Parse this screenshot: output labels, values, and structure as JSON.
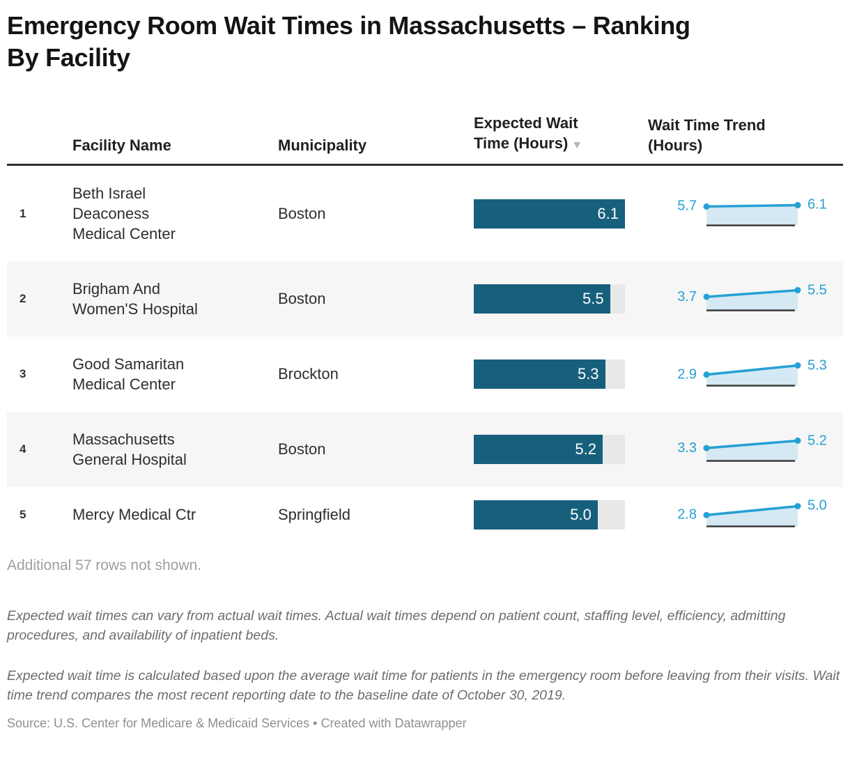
{
  "title": "Emergency Room Wait Times in Massachusetts – Ranking\nBy Facility",
  "colors": {
    "bar_fill": "#16607c",
    "bar_track": "#e8e8e8",
    "trend_line": "#26a0d4",
    "trend_area": "#d4e9f4",
    "trend_baseline": "#3a3a3a",
    "zebra_row": "#f6f6f6",
    "header_border": "#2e2e2e",
    "title_color": "#141414",
    "body_text": "#2e2e2e",
    "muted_text": "#9e9e9e",
    "note_text": "#6d6d6d",
    "source_text": "#8f8f8f",
    "sort_arrow": "#b5b5b5"
  },
  "table": {
    "headers": {
      "facility": "Facility Name",
      "municipality": "Municipality",
      "wait": "Expected Wait\nTime (Hours)",
      "trend": "Wait Time Trend\n(Hours)"
    },
    "sort_icon": "▼",
    "rows": [
      {
        "rank": "1",
        "facility": "Beth Israel Deaconess Medical Center",
        "municipality": "Boston",
        "wait": "6.1",
        "trend_start": "5.7",
        "trend_end": "6.1"
      },
      {
        "rank": "2",
        "facility": "Brigham And Women'S Hospital",
        "municipality": "Boston",
        "wait": "5.5",
        "trend_start": "3.7",
        "trend_end": "5.5"
      },
      {
        "rank": "3",
        "facility": "Good Samaritan Medical Center",
        "municipality": "Brockton",
        "wait": "5.3",
        "trend_start": "2.9",
        "trend_end": "5.3"
      },
      {
        "rank": "4",
        "facility": "Massachusetts General Hospital",
        "municipality": "Boston",
        "wait": "5.2",
        "trend_start": "3.3",
        "trend_end": "5.2"
      },
      {
        "rank": "5",
        "facility": "Mercy Medical Ctr",
        "municipality": "Springfield",
        "wait": "5.0",
        "trend_start": "2.8",
        "trend_end": "5.0"
      }
    ],
    "additional_rows_note": "Additional 57 rows not shown."
  },
  "notes": [
    "Expected wait times can vary from actual wait times. Actual wait times depend on patient count, staffing level, efficiency, admitting procedures, and availability of inpatient beds.",
    "Expected wait time is calculated based upon the average wait time for patients in the emergency room before leaving from their visits. Wait time trend compares the most recent reporting date to the baseline date of October 30, 2019."
  ],
  "source": "Source: U.S. Center for Medicare & Medicaid Services • Created with Datawrapper",
  "chart_data": {
    "type": "table",
    "title": "Emergency Room Wait Times in Massachusetts – Ranking By Facility",
    "columns": [
      "Rank",
      "Facility Name",
      "Municipality",
      "Expected Wait Time (Hours)",
      "Wait Time Trend (Hours)"
    ],
    "sorted_by": "Expected Wait Time (Hours)",
    "sort_order": "descending",
    "bar_axis_max": 6.1,
    "rows": [
      {
        "rank": 1,
        "facility": "Beth Israel Deaconess Medical Center",
        "municipality": "Boston",
        "expected_wait_hours": 6.1,
        "trend": {
          "start": 5.7,
          "end": 6.1
        }
      },
      {
        "rank": 2,
        "facility": "Brigham And Women'S Hospital",
        "municipality": "Boston",
        "expected_wait_hours": 5.5,
        "trend": {
          "start": 3.7,
          "end": 5.5
        }
      },
      {
        "rank": 3,
        "facility": "Good Samaritan Medical Center",
        "municipality": "Brockton",
        "expected_wait_hours": 5.3,
        "trend": {
          "start": 2.9,
          "end": 5.3
        }
      },
      {
        "rank": 4,
        "facility": "Massachusetts General Hospital",
        "municipality": "Boston",
        "expected_wait_hours": 5.2,
        "trend": {
          "start": 3.3,
          "end": 5.2
        }
      },
      {
        "rank": 5,
        "facility": "Mercy Medical Ctr",
        "municipality": "Springfield",
        "expected_wait_hours": 5.0,
        "trend": {
          "start": 2.8,
          "end": 5.0
        }
      }
    ],
    "hidden_rows_count": 57
  }
}
